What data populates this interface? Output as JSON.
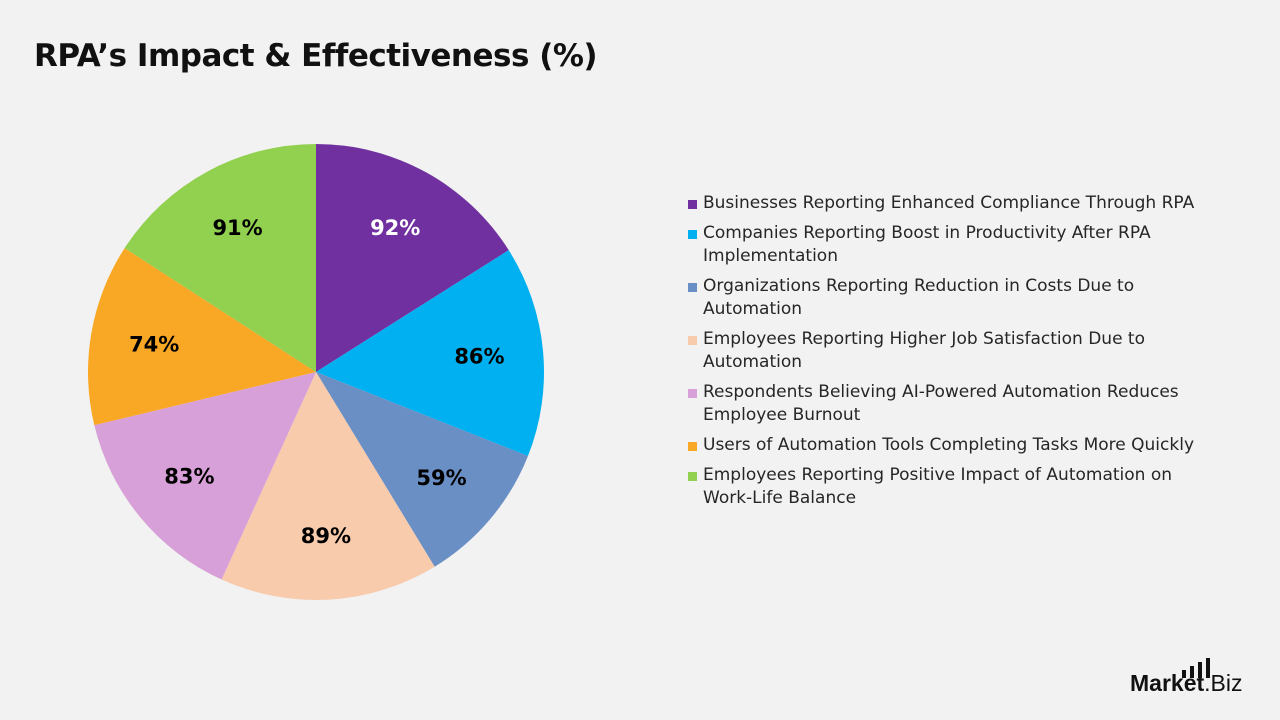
{
  "chart_data": {
    "type": "pie",
    "title": "RPA’s Impact & Effectiveness (%)",
    "legend_position": "right",
    "categories": [
      "Businesses Reporting Enhanced Compliance Through RPA",
      "Companies Reporting Boost in Productivity After RPA Implementation",
      "Organizations Reporting Reduction in Costs Due to Automation",
      "Employees Reporting Higher Job Satisfaction Due to Automation",
      "Respondents Believing AI-Powered Automation Reduces Employee Burnout",
      "Users of Automation Tools Completing Tasks More Quickly",
      "Employees Reporting Positive Impact of Automation on Work-Life Balance"
    ],
    "values": [
      92,
      86,
      59,
      89,
      83,
      74,
      91
    ],
    "data_labels": [
      "92%",
      "86%",
      "59%",
      "89%",
      "83%",
      "74%",
      "91%"
    ],
    "colors": [
      "#7030a0",
      "#00b0f0",
      "#6a8fc4",
      "#f8cbad",
      "#d7a0d8",
      "#f9a825",
      "#92d050"
    ],
    "label_colors": [
      "#ffffff",
      "#000000",
      "#000000",
      "#000000",
      "#000000",
      "#000000",
      "#000000"
    ]
  },
  "logo": {
    "text_bold": "Market",
    "text_regular": ".Biz"
  }
}
